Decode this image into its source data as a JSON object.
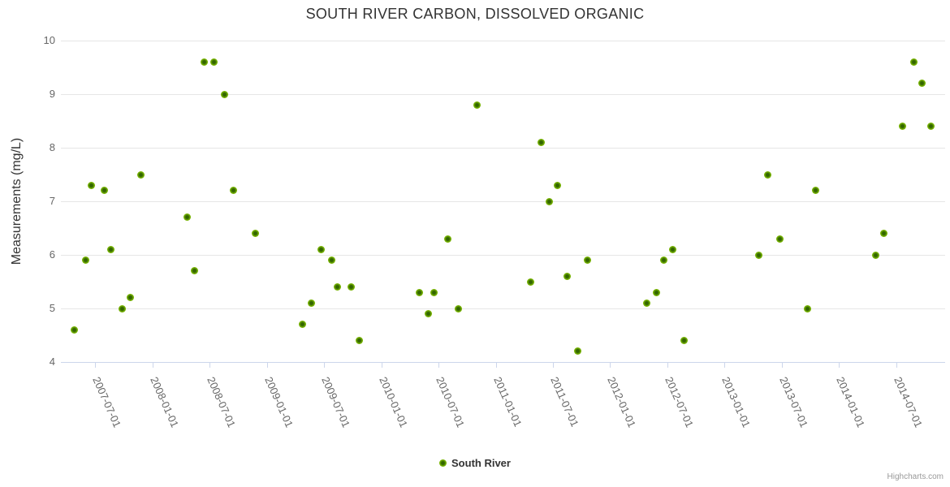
{
  "chart": {
    "title": "SOUTH RIVER CARBON, DISSOLVED ORGANIC",
    "legend": {
      "label": "South River"
    },
    "credits": "Highcharts.com"
  },
  "colors": {
    "background": "#ffffff",
    "grid": "#e6e6e6",
    "axis_line": "#ccd6eb",
    "title_text": "#333333",
    "axis_label_text": "#666666",
    "legend_text": "#333333",
    "credits_text": "#999999",
    "marker_outer": "#77b300",
    "marker_core": "#336600"
  },
  "chart_data": {
    "type": "scatter",
    "title": "SOUTH RIVER CARBON, DISSOLVED ORGANIC",
    "xlabel": "",
    "ylabel": "Measurements (mg/L)",
    "ylim": [
      4,
      10
    ],
    "y_ticks": [
      4,
      5,
      6,
      7,
      8,
      9,
      10
    ],
    "x_ticks": [
      "2007-07-01",
      "2008-01-01",
      "2008-07-01",
      "2009-01-01",
      "2009-07-01",
      "2010-01-01",
      "2010-07-01",
      "2011-01-01",
      "2011-07-01",
      "2012-01-01",
      "2012-07-01",
      "2013-01-01",
      "2013-07-01",
      "2014-01-01",
      "2014-07-01"
    ],
    "x_range": [
      "2007-03-13",
      "2014-12-05"
    ],
    "grid": "horizontal",
    "legend_position": "bottom-center",
    "series": [
      {
        "name": "South River",
        "marker_color": "#77b300",
        "marker_core_color": "#336600",
        "points": [
          [
            "2007-04-25",
            4.6
          ],
          [
            "2007-05-30",
            5.9
          ],
          [
            "2007-06-19",
            7.3
          ],
          [
            "2007-07-30",
            7.2
          ],
          [
            "2007-08-20",
            6.1
          ],
          [
            "2007-09-26",
            5.0
          ],
          [
            "2007-10-22",
            5.2
          ],
          [
            "2007-11-26",
            7.5
          ],
          [
            "2008-04-21",
            6.7
          ],
          [
            "2008-05-13",
            5.7
          ],
          [
            "2008-06-14",
            9.6
          ],
          [
            "2008-07-14",
            9.6
          ],
          [
            "2008-08-18",
            9.0
          ],
          [
            "2008-09-15",
            7.2
          ],
          [
            "2008-11-24",
            6.4
          ],
          [
            "2009-04-23",
            4.7
          ],
          [
            "2009-05-21",
            5.1
          ],
          [
            "2009-06-23",
            6.1
          ],
          [
            "2009-07-24",
            5.9
          ],
          [
            "2009-08-13",
            5.4
          ],
          [
            "2009-09-26",
            5.4
          ],
          [
            "2009-10-21",
            4.4
          ],
          [
            "2010-04-30",
            5.3
          ],
          [
            "2010-05-29",
            4.9
          ],
          [
            "2010-06-18",
            5.3
          ],
          [
            "2010-07-31",
            6.3
          ],
          [
            "2010-09-04",
            5.0
          ],
          [
            "2010-11-03",
            8.8
          ],
          [
            "2011-04-20",
            5.5
          ],
          [
            "2011-05-23",
            8.1
          ],
          [
            "2011-06-21",
            7.0
          ],
          [
            "2011-07-14",
            7.3
          ],
          [
            "2011-08-16",
            5.6
          ],
          [
            "2011-09-20",
            4.2
          ],
          [
            "2011-10-20",
            5.9
          ],
          [
            "2012-04-26",
            5.1
          ],
          [
            "2012-05-26",
            5.3
          ],
          [
            "2012-06-20",
            5.9
          ],
          [
            "2012-07-18",
            6.1
          ],
          [
            "2012-08-23",
            4.4
          ],
          [
            "2013-04-19",
            6.0
          ],
          [
            "2013-05-17",
            7.5
          ],
          [
            "2013-06-26",
            6.3
          ],
          [
            "2013-09-22",
            5.0
          ],
          [
            "2013-10-18",
            7.2
          ],
          [
            "2014-04-26",
            6.0
          ],
          [
            "2014-05-22",
            6.4
          ],
          [
            "2014-07-21",
            8.4
          ],
          [
            "2014-08-26",
            9.6
          ],
          [
            "2014-09-23",
            9.2
          ],
          [
            "2014-10-20",
            8.4
          ]
        ]
      }
    ]
  }
}
